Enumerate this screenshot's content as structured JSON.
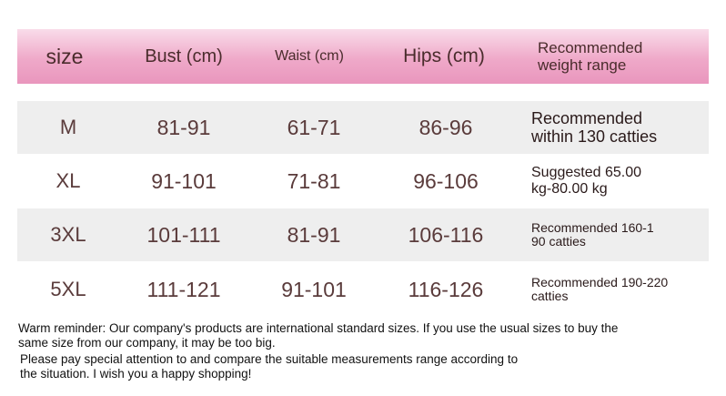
{
  "header": {
    "size": "size",
    "bust": "Bust (cm)",
    "waist": "Waist (cm)",
    "hips": "Hips (cm)",
    "weight_line1": "Recommended",
    "weight_line2": "weight range"
  },
  "rows": [
    {
      "size": "M",
      "bust": "81-91",
      "waist": "61-71",
      "hips": "86-96",
      "weight_line1": "Recommended",
      "weight_line2": "within 130 catties"
    },
    {
      "size": "XL",
      "bust": "91-101",
      "waist": "71-81",
      "hips": "96-106",
      "weight_line1": "Suggested 65.00",
      "weight_line2": "kg-80.00 kg"
    },
    {
      "size": "3XL",
      "bust": "101-111",
      "waist": "81-91",
      "hips": "106-116",
      "weight_line1": "Recommended 160-1",
      "weight_line2": "90 catties"
    },
    {
      "size": "5XL",
      "bust": "111-121",
      "waist": "91-101",
      "hips": "116-126",
      "weight_line1": "Recommended 190-220",
      "weight_line2": "catties"
    }
  ],
  "notes": {
    "line1": "Warm reminder: Our company's products are international standard sizes. If you use the usual sizes to buy the",
    "line2": "same size from our company, it may be too big.",
    "line3": "Please pay special attention to and compare the suitable measurements range according to",
    "line4": "the situation. I wish you a happy shopping!"
  }
}
